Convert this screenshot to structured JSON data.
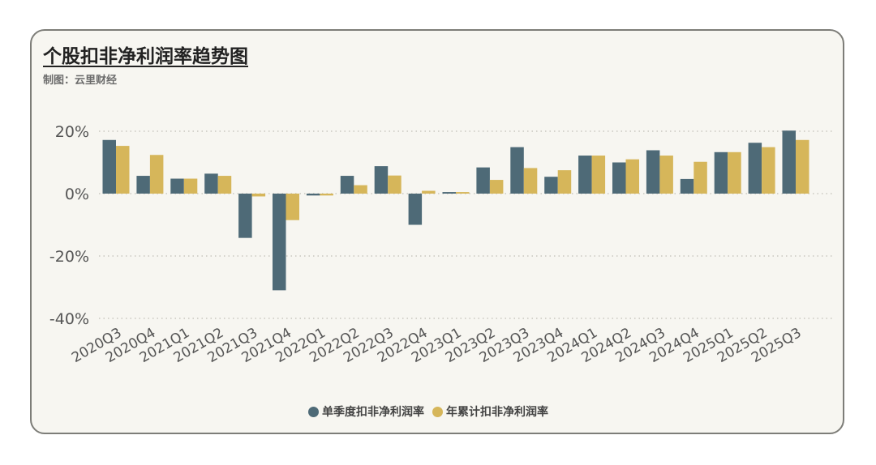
{
  "page": {
    "title": "个股扣非净利润率趋势图",
    "source": "制图：云里财经"
  },
  "colors": {
    "card_background": "#f7f6f1",
    "series_1": "#4e6a77",
    "series_2": "#d6b65a",
    "grid": "#c9c7bf",
    "tick_text": "#555555"
  },
  "chart_data": {
    "type": "bar",
    "categories": [
      "2020Q3",
      "2020Q4",
      "2021Q1",
      "2021Q2",
      "2021Q3",
      "2021Q4",
      "2022Q1",
      "2022Q2",
      "2022Q3",
      "2022Q4",
      "2023Q1",
      "2023Q2",
      "2023Q3",
      "2023Q4",
      "2024Q1",
      "2024Q2",
      "2024Q3",
      "2024Q4",
      "2025Q1",
      "2025Q2",
      "2025Q3"
    ],
    "series": [
      {
        "name": "单季度扣非净利润率",
        "color": "#4e6a77",
        "values": [
          17.2,
          5.7,
          4.8,
          6.4,
          -14.2,
          -31.0,
          -0.6,
          5.7,
          8.8,
          -10.0,
          0.5,
          8.4,
          14.9,
          5.4,
          12.2,
          10.0,
          13.9,
          4.7,
          13.3,
          16.3,
          20.2
        ]
      },
      {
        "name": "年累计扣非净利润率",
        "color": "#d6b65a",
        "values": [
          15.3,
          12.4,
          4.8,
          5.7,
          -0.9,
          -8.5,
          -0.6,
          2.7,
          5.8,
          0.9,
          0.5,
          4.4,
          8.2,
          7.5,
          12.2,
          11.0,
          12.2,
          10.2,
          13.3,
          14.9,
          17.2
        ]
      }
    ],
    "yticks": [
      20,
      0,
      -20,
      -40
    ],
    "ytick_labels": [
      "20%",
      "0%",
      "-20%",
      "-40%"
    ],
    "ylim": [
      -40,
      22
    ],
    "grid": "horizontal dotted",
    "legend_position": "bottom-center",
    "xlabel": "",
    "ylabel": ""
  }
}
